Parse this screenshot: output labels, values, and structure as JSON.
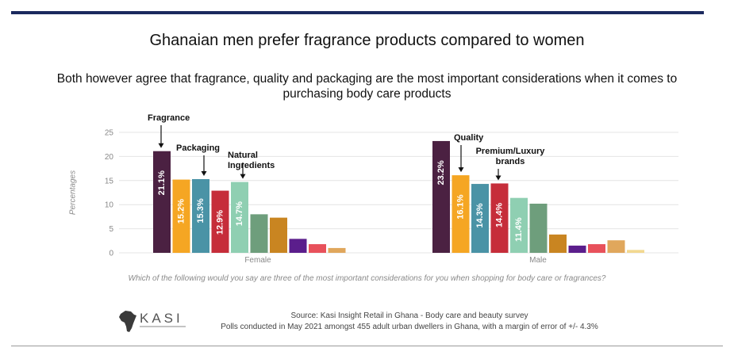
{
  "title": "Ghanaian men prefer fragrance products compared to women",
  "subtitle": "Both however agree that fragrance, quality and packaging are the most important considerations when it comes to purchasing body care products",
  "question": "Which of the following would you say are three of the most important considerations for you when shopping for body care or fragrances?",
  "source_line1": "Source: Kasi Insight Retail in Ghana - Body care and beauty survey",
  "source_line2": "Polls conducted in May 2021 amongst 455 adult urban dwellers in Ghana, with a margin of error of +/- 4.3%",
  "logo": {
    "text": "KASI",
    "icon": "africa-map-icon"
  },
  "colors": [
    "#4b2142",
    "#f5a623",
    "#4a93a6",
    "#c62d3a",
    "#8fcfb2",
    "#6e9e7c",
    "#c98521",
    "#5b1e8c",
    "#e8515b",
    "#e0a75c",
    "#f2d890"
  ],
  "chart_data": {
    "type": "bar",
    "ylabel": "Percentages",
    "ylim": [
      0,
      25
    ],
    "yticks": [
      0,
      5,
      10,
      15,
      20,
      25
    ],
    "grid": true,
    "categories": [
      "Female",
      "Male"
    ],
    "groups": [
      {
        "name": "Female",
        "values": [
          21.1,
          15.2,
          15.3,
          12.9,
          14.7,
          8.0,
          7.3,
          2.9,
          1.8,
          1.0
        ]
      },
      {
        "name": "Male",
        "values": [
          23.2,
          16.1,
          14.3,
          14.4,
          11.4,
          10.2,
          3.8,
          1.5,
          1.8,
          2.6,
          0.6
        ]
      }
    ],
    "data_labels": [
      [
        "21.1%",
        "15.2%",
        "15.3%",
        "12.9%",
        "14.7%"
      ],
      [
        "23.2%",
        "16.1%",
        "14.3%",
        "14.4%",
        "11.4%"
      ]
    ],
    "annotations": [
      {
        "group": 0,
        "bar": 0,
        "text": "Fragrance"
      },
      {
        "group": 0,
        "bar": 2,
        "text": "Packaging"
      },
      {
        "group": 0,
        "bar": 4,
        "text": "Natural Ingredients"
      },
      {
        "group": 1,
        "bar": 1,
        "text": "Quality"
      },
      {
        "group": 1,
        "bar": 3,
        "text": "Premium/Luxury brands"
      }
    ]
  }
}
